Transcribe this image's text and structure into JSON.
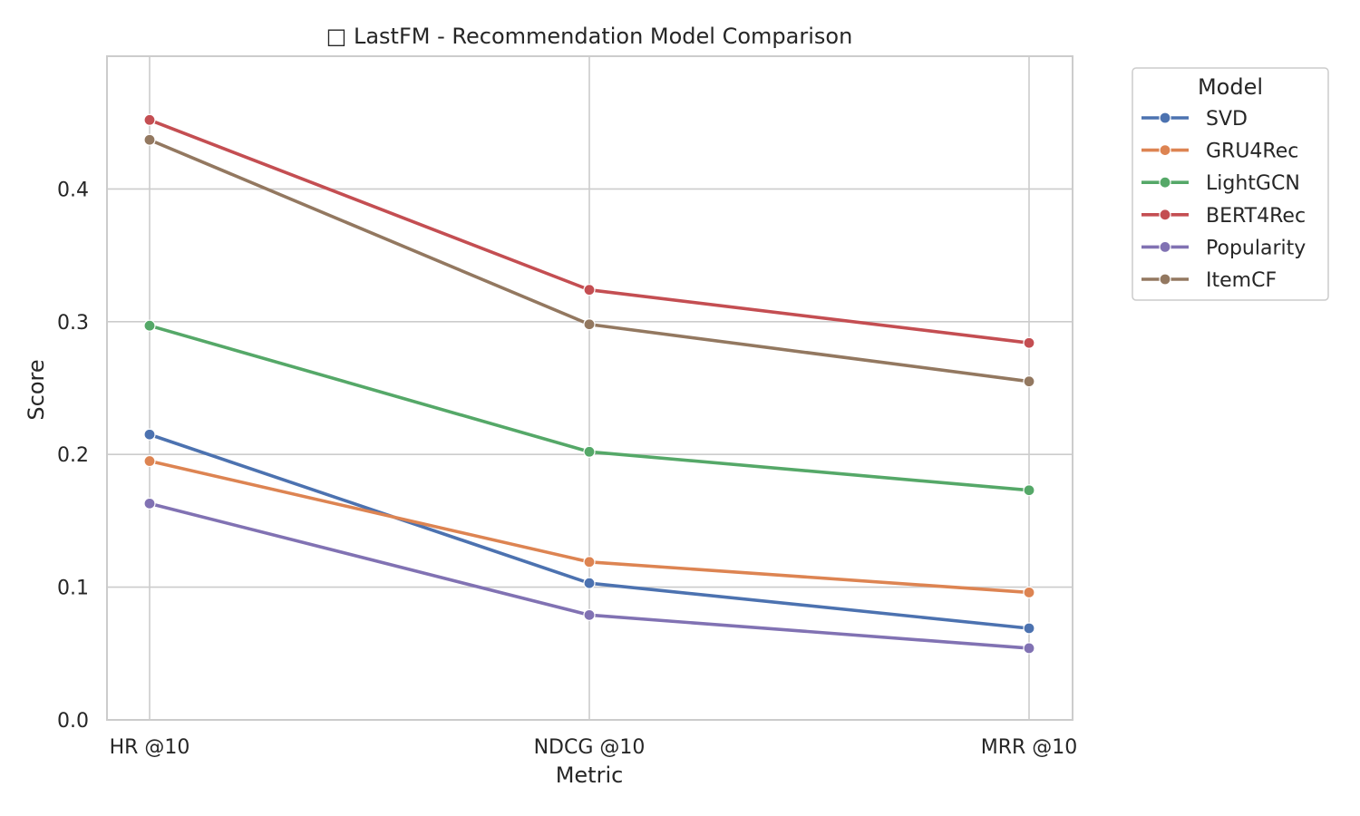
{
  "chart_data": {
    "type": "line",
    "title": "□ LastFM - Recommendation Model Comparison",
    "xlabel": "Metric",
    "ylabel": "Score",
    "categories": [
      "HR @10",
      "NDCG @10",
      "MRR @10"
    ],
    "ylim": [
      0,
      0.5
    ],
    "yticks": [
      0.0,
      0.1,
      0.2,
      0.3,
      0.4
    ],
    "ytick_labels": [
      "0.0",
      "0.1",
      "0.2",
      "0.3",
      "0.4"
    ],
    "grid": true,
    "legend": {
      "title": "Model",
      "placement": "outside-top-right"
    },
    "series": [
      {
        "name": "SVD",
        "color": "#4c72b0",
        "values": [
          0.215,
          0.103,
          0.069
        ]
      },
      {
        "name": "GRU4Rec",
        "color": "#dd8452",
        "values": [
          0.195,
          0.119,
          0.096
        ]
      },
      {
        "name": "LightGCN",
        "color": "#55a868",
        "values": [
          0.297,
          0.202,
          0.173
        ]
      },
      {
        "name": "BERT4Rec",
        "color": "#c44e52",
        "values": [
          0.452,
          0.324,
          0.284
        ]
      },
      {
        "name": "Popularity",
        "color": "#8172b3",
        "values": [
          0.163,
          0.079,
          0.054
        ]
      },
      {
        "name": "ItemCF",
        "color": "#937860",
        "values": [
          0.437,
          0.298,
          0.255
        ]
      }
    ]
  }
}
